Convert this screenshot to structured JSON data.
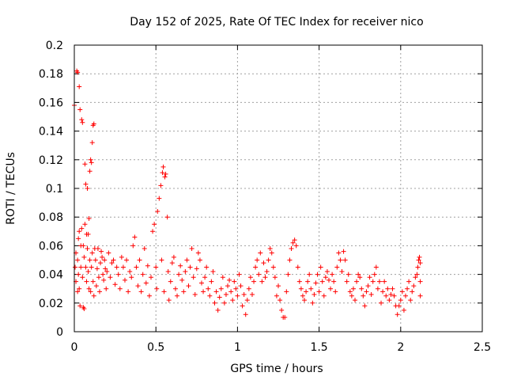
{
  "chart_data": {
    "type": "scatter",
    "title": "Day 152 of 2025, Rate Of TEC Index for receiver nico",
    "xlabel": "GPS time / hours",
    "ylabel": "ROTI / TECUs",
    "xlim": [
      0,
      2.5
    ],
    "ylim": [
      0,
      0.2
    ],
    "x_ticks": [
      0,
      0.5,
      1,
      1.5,
      2,
      2.5
    ],
    "x_tick_labels": [
      "0",
      "0.5",
      "1",
      "1.5",
      "2",
      "2.5"
    ],
    "y_ticks": [
      0,
      0.02,
      0.04,
      0.06,
      0.08,
      0.1,
      0.12,
      0.14,
      0.16,
      0.18,
      0.2
    ],
    "y_tick_labels": [
      "0",
      "0.02",
      "0.04",
      "0.06",
      "0.08",
      "0.1",
      "0.12",
      "0.14",
      "0.16",
      "0.18",
      "0.2"
    ],
    "grid": true,
    "marker": "+",
    "marker_color": "#ff0000",
    "series": [
      {
        "name": "ROTI",
        "points": [
          [
            0.0,
            0.158
          ],
          [
            0.005,
            0.045
          ],
          [
            0.01,
            0.055
          ],
          [
            0.01,
            0.035
          ],
          [
            0.015,
            0.182
          ],
          [
            0.02,
            0.181
          ],
          [
            0.02,
            0.05
          ],
          [
            0.02,
            0.028
          ],
          [
            0.025,
            0.065
          ],
          [
            0.025,
            0.04
          ],
          [
            0.03,
            0.171
          ],
          [
            0.03,
            0.07
          ],
          [
            0.03,
            0.03
          ],
          [
            0.035,
            0.155
          ],
          [
            0.035,
            0.018
          ],
          [
            0.04,
            0.06
          ],
          [
            0.04,
            0.045
          ],
          [
            0.045,
            0.148
          ],
          [
            0.045,
            0.072
          ],
          [
            0.05,
            0.146
          ],
          [
            0.05,
            0.038
          ],
          [
            0.055,
            0.06
          ],
          [
            0.055,
            0.017
          ],
          [
            0.06,
            0.052
          ],
          [
            0.06,
            0.016
          ],
          [
            0.065,
            0.117
          ],
          [
            0.065,
            0.075
          ],
          [
            0.07,
            0.103
          ],
          [
            0.07,
            0.045
          ],
          [
            0.075,
            0.068
          ],
          [
            0.075,
            0.035
          ],
          [
            0.08,
            0.1
          ],
          [
            0.08,
            0.058
          ],
          [
            0.085,
            0.068
          ],
          [
            0.085,
            0.042
          ],
          [
            0.09,
            0.079
          ],
          [
            0.09,
            0.03
          ],
          [
            0.095,
            0.112
          ],
          [
            0.095,
            0.05
          ],
          [
            0.1,
            0.12
          ],
          [
            0.1,
            0.028
          ],
          [
            0.105,
            0.118
          ],
          [
            0.105,
            0.045
          ],
          [
            0.11,
            0.132
          ],
          [
            0.11,
            0.055
          ],
          [
            0.115,
            0.144
          ],
          [
            0.115,
            0.035
          ],
          [
            0.12,
            0.145
          ],
          [
            0.12,
            0.025
          ],
          [
            0.125,
            0.058
          ],
          [
            0.13,
            0.05
          ],
          [
            0.135,
            0.032
          ],
          [
            0.14,
            0.044
          ],
          [
            0.145,
            0.058
          ],
          [
            0.15,
            0.038
          ],
          [
            0.155,
            0.028
          ],
          [
            0.16,
            0.048
          ],
          [
            0.165,
            0.056
          ],
          [
            0.17,
            0.052
          ],
          [
            0.175,
            0.04
          ],
          [
            0.18,
            0.036
          ],
          [
            0.185,
            0.05
          ],
          [
            0.19,
            0.044
          ],
          [
            0.195,
            0.03
          ],
          [
            0.2,
            0.042
          ],
          [
            0.21,
            0.055
          ],
          [
            0.22,
            0.038
          ],
          [
            0.23,
            0.048
          ],
          [
            0.24,
            0.05
          ],
          [
            0.25,
            0.033
          ],
          [
            0.26,
            0.045
          ],
          [
            0.27,
            0.04
          ],
          [
            0.28,
            0.03
          ],
          [
            0.29,
            0.052
          ],
          [
            0.3,
            0.045
          ],
          [
            0.31,
            0.036
          ],
          [
            0.32,
            0.05
          ],
          [
            0.33,
            0.028
          ],
          [
            0.34,
            0.042
          ],
          [
            0.35,
            0.038
          ],
          [
            0.36,
            0.06
          ],
          [
            0.37,
            0.066
          ],
          [
            0.38,
            0.045
          ],
          [
            0.39,
            0.032
          ],
          [
            0.4,
            0.05
          ],
          [
            0.41,
            0.028
          ],
          [
            0.42,
            0.04
          ],
          [
            0.43,
            0.058
          ],
          [
            0.44,
            0.034
          ],
          [
            0.45,
            0.046
          ],
          [
            0.46,
            0.025
          ],
          [
            0.47,
            0.038
          ],
          [
            0.48,
            0.07
          ],
          [
            0.49,
            0.075
          ],
          [
            0.5,
            0.045
          ],
          [
            0.505,
            0.03
          ],
          [
            0.51,
            0.084
          ],
          [
            0.52,
            0.093
          ],
          [
            0.53,
            0.102
          ],
          [
            0.535,
            0.05
          ],
          [
            0.54,
            0.111
          ],
          [
            0.545,
            0.115
          ],
          [
            0.55,
            0.028
          ],
          [
            0.555,
            0.108
          ],
          [
            0.56,
            0.11
          ],
          [
            0.57,
            0.08
          ],
          [
            0.575,
            0.042
          ],
          [
            0.58,
            0.022
          ],
          [
            0.59,
            0.035
          ],
          [
            0.6,
            0.048
          ],
          [
            0.61,
            0.052
          ],
          [
            0.62,
            0.03
          ],
          [
            0.63,
            0.025
          ],
          [
            0.64,
            0.04
          ],
          [
            0.65,
            0.046
          ],
          [
            0.66,
            0.036
          ],
          [
            0.67,
            0.028
          ],
          [
            0.68,
            0.042
          ],
          [
            0.69,
            0.05
          ],
          [
            0.7,
            0.032
          ],
          [
            0.71,
            0.045
          ],
          [
            0.72,
            0.058
          ],
          [
            0.73,
            0.038
          ],
          [
            0.74,
            0.026
          ],
          [
            0.75,
            0.044
          ],
          [
            0.76,
            0.055
          ],
          [
            0.77,
            0.05
          ],
          [
            0.78,
            0.034
          ],
          [
            0.79,
            0.028
          ],
          [
            0.8,
            0.038
          ],
          [
            0.81,
            0.045
          ],
          [
            0.82,
            0.03
          ],
          [
            0.83,
            0.025
          ],
          [
            0.84,
            0.035
          ],
          [
            0.85,
            0.042
          ],
          [
            0.86,
            0.02
          ],
          [
            0.87,
            0.028
          ],
          [
            0.88,
            0.015
          ],
          [
            0.89,
            0.024
          ],
          [
            0.9,
            0.03
          ],
          [
            0.91,
            0.038
          ],
          [
            0.92,
            0.02
          ],
          [
            0.93,
            0.026
          ],
          [
            0.94,
            0.032
          ],
          [
            0.95,
            0.036
          ],
          [
            0.96,
            0.028
          ],
          [
            0.97,
            0.022
          ],
          [
            0.98,
            0.035
          ],
          [
            0.99,
            0.03
          ],
          [
            1.0,
            0.025
          ],
          [
            1.01,
            0.04
          ],
          [
            1.02,
            0.032
          ],
          [
            1.03,
            0.018
          ],
          [
            1.04,
            0.026
          ],
          [
            1.05,
            0.012
          ],
          [
            1.06,
            0.022
          ],
          [
            1.07,
            0.03
          ],
          [
            1.08,
            0.038
          ],
          [
            1.09,
            0.026
          ],
          [
            1.1,
            0.035
          ],
          [
            1.11,
            0.045
          ],
          [
            1.12,
            0.05
          ],
          [
            1.13,
            0.04
          ],
          [
            1.14,
            0.055
          ],
          [
            1.15,
            0.035
          ],
          [
            1.16,
            0.048
          ],
          [
            1.17,
            0.038
          ],
          [
            1.18,
            0.042
          ],
          [
            1.19,
            0.05
          ],
          [
            1.2,
            0.058
          ],
          [
            1.21,
            0.055
          ],
          [
            1.22,
            0.045
          ],
          [
            1.23,
            0.038
          ],
          [
            1.24,
            0.025
          ],
          [
            1.25,
            0.032
          ],
          [
            1.26,
            0.022
          ],
          [
            1.27,
            0.015
          ],
          [
            1.28,
            0.01
          ],
          [
            1.29,
            0.01
          ],
          [
            1.3,
            0.028
          ],
          [
            1.31,
            0.04
          ],
          [
            1.32,
            0.05
          ],
          [
            1.33,
            0.058
          ],
          [
            1.34,
            0.062
          ],
          [
            1.35,
            0.064
          ],
          [
            1.36,
            0.06
          ],
          [
            1.37,
            0.045
          ],
          [
            1.38,
            0.035
          ],
          [
            1.39,
            0.03
          ],
          [
            1.4,
            0.025
          ],
          [
            1.41,
            0.022
          ],
          [
            1.42,
            0.028
          ],
          [
            1.43,
            0.035
          ],
          [
            1.44,
            0.04
          ],
          [
            1.45,
            0.03
          ],
          [
            1.46,
            0.02
          ],
          [
            1.47,
            0.026
          ],
          [
            1.48,
            0.034
          ],
          [
            1.49,
            0.04
          ],
          [
            1.5,
            0.028
          ],
          [
            1.51,
            0.045
          ],
          [
            1.52,
            0.035
          ],
          [
            1.53,
            0.025
          ],
          [
            1.54,
            0.038
          ],
          [
            1.55,
            0.042
          ],
          [
            1.56,
            0.036
          ],
          [
            1.57,
            0.03
          ],
          [
            1.58,
            0.04
          ],
          [
            1.59,
            0.035
          ],
          [
            1.6,
            0.028
          ],
          [
            1.61,
            0.045
          ],
          [
            1.62,
            0.055
          ],
          [
            1.63,
            0.05
          ],
          [
            1.64,
            0.042
          ],
          [
            1.65,
            0.056
          ],
          [
            1.66,
            0.05
          ],
          [
            1.67,
            0.035
          ],
          [
            1.68,
            0.04
          ],
          [
            1.69,
            0.028
          ],
          [
            1.7,
            0.025
          ],
          [
            1.71,
            0.03
          ],
          [
            1.72,
            0.022
          ],
          [
            1.73,
            0.035
          ],
          [
            1.74,
            0.04
          ],
          [
            1.75,
            0.038
          ],
          [
            1.76,
            0.03
          ],
          [
            1.77,
            0.025
          ],
          [
            1.78,
            0.018
          ],
          [
            1.79,
            0.028
          ],
          [
            1.8,
            0.032
          ],
          [
            1.81,
            0.038
          ],
          [
            1.82,
            0.026
          ],
          [
            1.83,
            0.035
          ],
          [
            1.84,
            0.04
          ],
          [
            1.85,
            0.045
          ],
          [
            1.86,
            0.03
          ],
          [
            1.87,
            0.035
          ],
          [
            1.88,
            0.02
          ],
          [
            1.89,
            0.028
          ],
          [
            1.9,
            0.035
          ],
          [
            1.91,
            0.025
          ],
          [
            1.92,
            0.03
          ],
          [
            1.93,
            0.022
          ],
          [
            1.94,
            0.026
          ],
          [
            1.95,
            0.03
          ],
          [
            1.96,
            0.025
          ],
          [
            1.97,
            0.018
          ],
          [
            1.98,
            0.012
          ],
          [
            1.99,
            0.018
          ],
          [
            2.0,
            0.022
          ],
          [
            2.01,
            0.028
          ],
          [
            2.02,
            0.015
          ],
          [
            2.03,
            0.025
          ],
          [
            2.04,
            0.03
          ],
          [
            2.05,
            0.035
          ],
          [
            2.06,
            0.022
          ],
          [
            2.07,
            0.028
          ],
          [
            2.08,
            0.032
          ],
          [
            2.09,
            0.038
          ],
          [
            2.1,
            0.04
          ],
          [
            2.105,
            0.045
          ],
          [
            2.11,
            0.05
          ],
          [
            2.115,
            0.052
          ],
          [
            2.12,
            0.048
          ],
          [
            2.12,
            0.035
          ],
          [
            2.12,
            0.025
          ]
        ]
      }
    ]
  }
}
